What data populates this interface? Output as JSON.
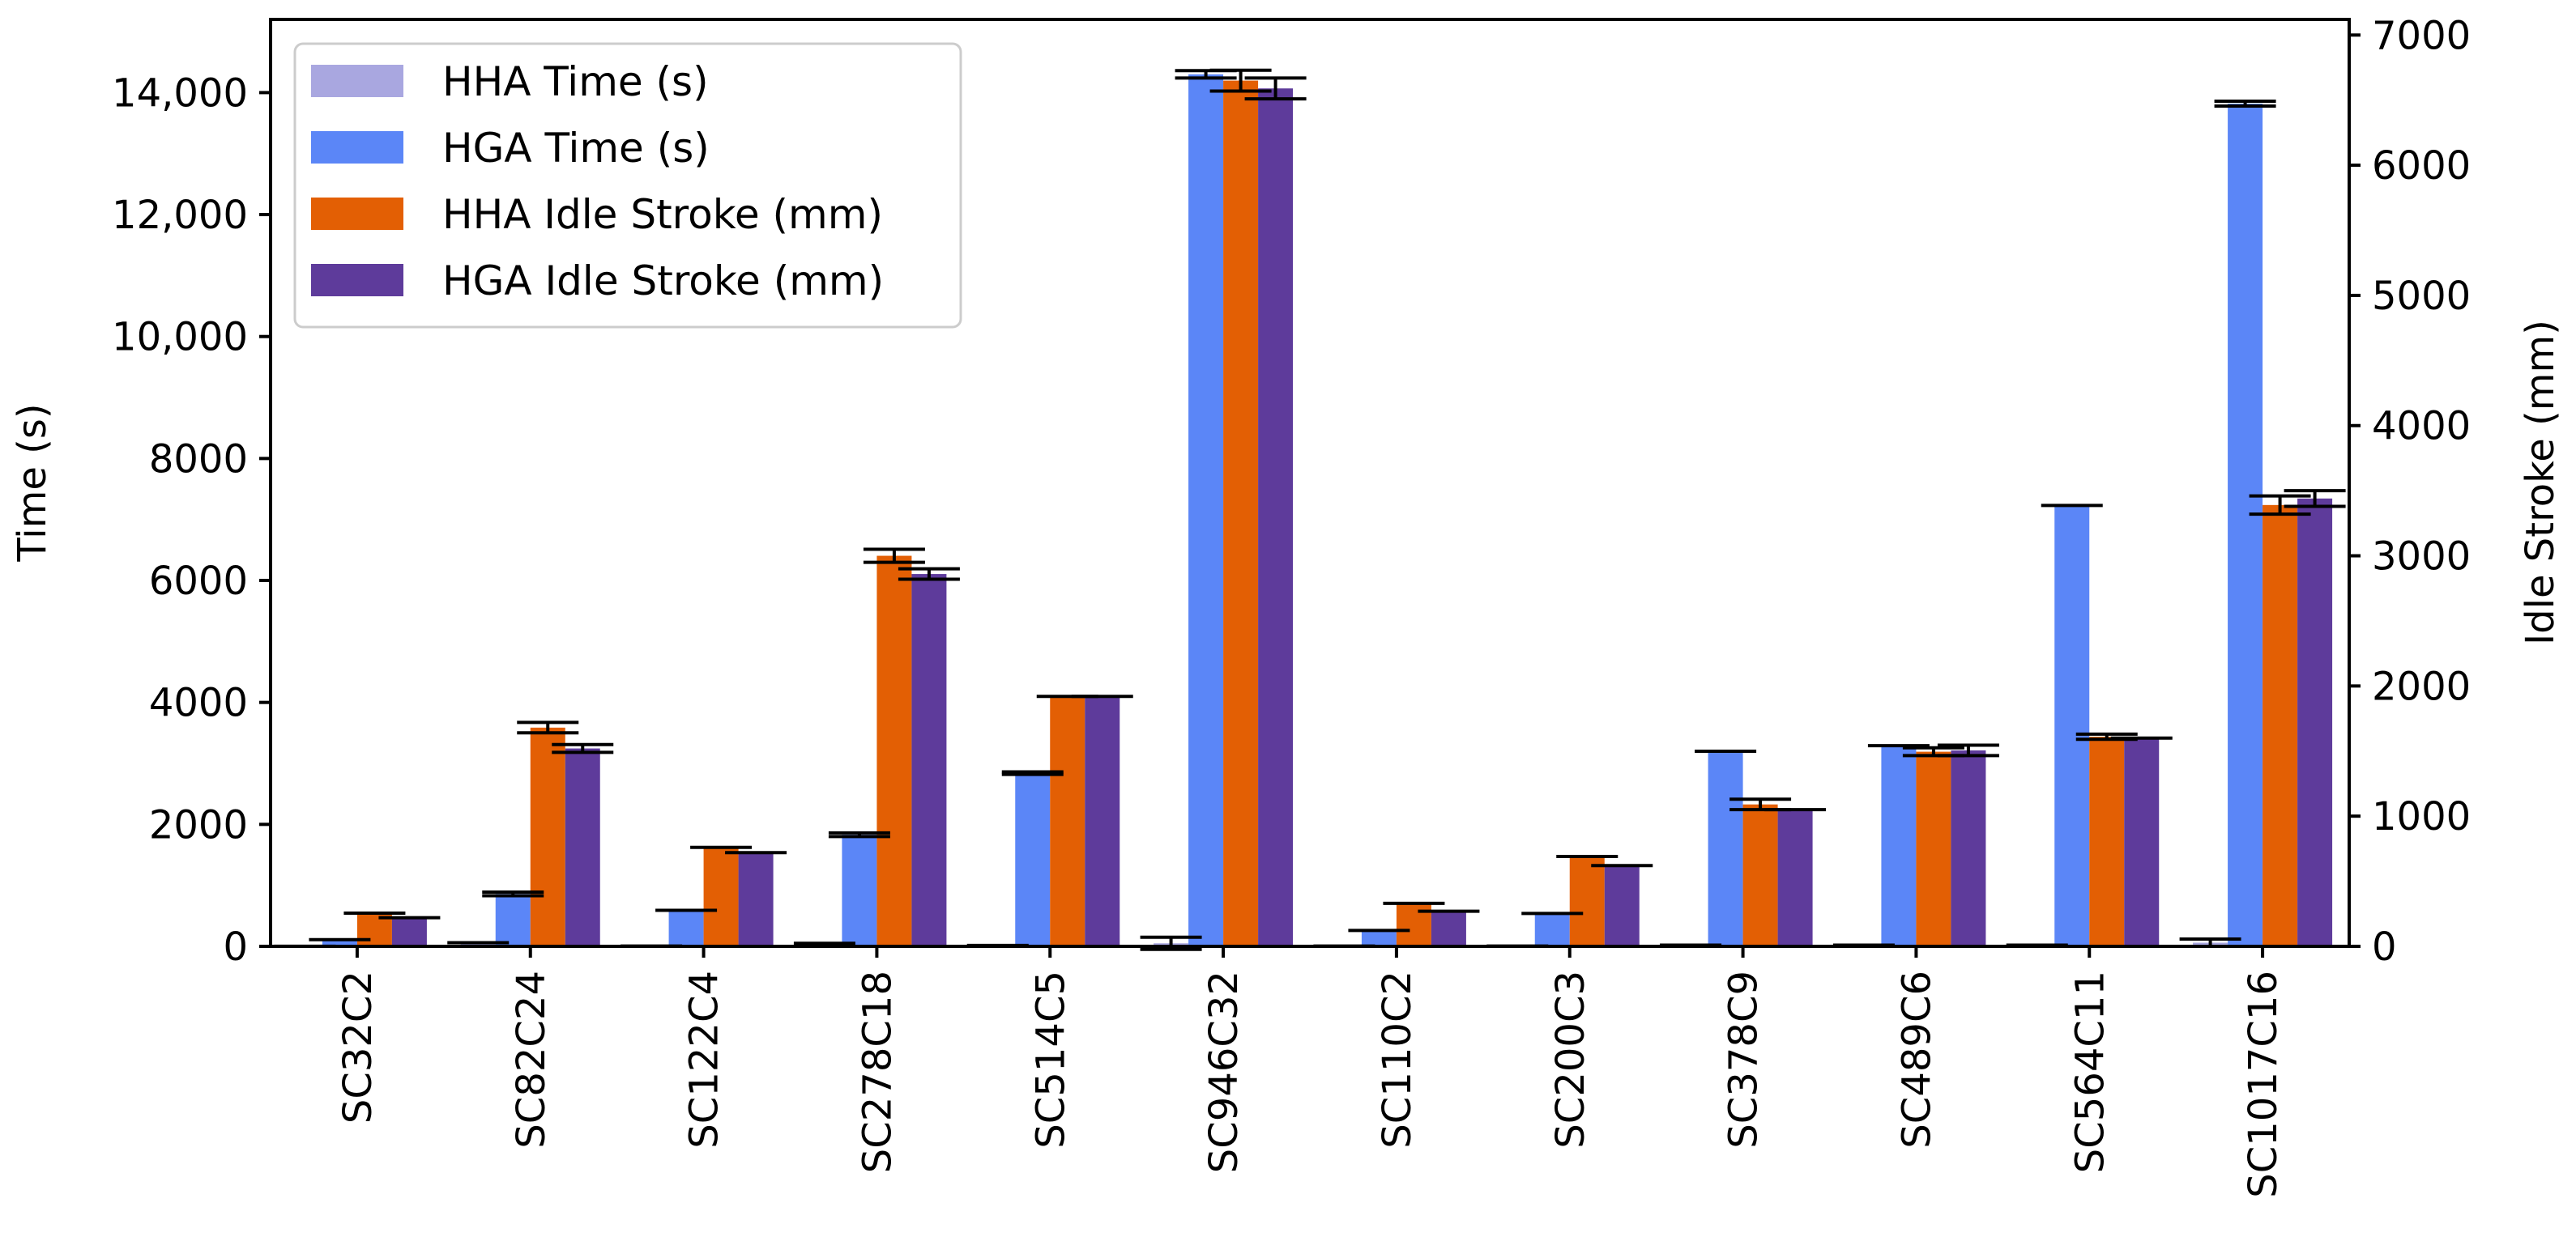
{
  "chart_data": {
    "type": "bar",
    "categories": [
      "SC32C2",
      "SC82C24",
      "SC122C4",
      "SC278C18",
      "SC514C5",
      "SC946C32",
      "SC110C2",
      "SC200C3",
      "SC378C9",
      "SC489C6",
      "SC564C11",
      "SC1017C16"
    ],
    "ylabel": "Time (s)",
    "y2label": "Idle Stroke (mm)",
    "ylim": [
      0,
      15200
    ],
    "y2lim": [
      0,
      7120
    ],
    "yticks": [
      0,
      2000,
      4000,
      6000,
      8000,
      10000,
      12000,
      14000
    ],
    "ytick_labels": [
      "0",
      "2000",
      "4000",
      "6000",
      "8000",
      "10,000",
      "12,000",
      "14,000"
    ],
    "y2ticks": [
      0,
      1000,
      2000,
      3000,
      4000,
      5000,
      6000,
      7000
    ],
    "y2tick_labels": [
      "0",
      "1000",
      "2000",
      "3000",
      "4000",
      "5000",
      "6000",
      "7000"
    ],
    "legend_placement": "top-left",
    "grid": false,
    "series": [
      {
        "name": "HHA Time (s)",
        "axis": "left",
        "color": "#a9a7e0",
        "values": [
          2,
          60,
          5,
          50,
          15,
          50,
          5,
          5,
          20,
          20,
          20,
          60
        ],
        "errors": [
          0,
          0,
          0,
          0,
          0,
          100,
          0,
          0,
          0,
          0,
          0,
          60
        ]
      },
      {
        "name": "HGA Time (s)",
        "axis": "left",
        "color": "#5b86f7",
        "values": [
          110,
          860,
          590,
          1830,
          2840,
          14300,
          260,
          540,
          3200,
          3290,
          7230,
          13820
        ],
        "errors": [
          0,
          30,
          0,
          30,
          20,
          60,
          0,
          0,
          0,
          0,
          0,
          40
        ]
      },
      {
        "name": "HHA Idle Stroke (mm)",
        "axis": "right",
        "color": "#e35f04",
        "values": [
          255,
          1680,
          760,
          3000,
          1920,
          6650,
          330,
          690,
          1090,
          1495,
          1610,
          3390
        ],
        "errors": [
          0,
          40,
          0,
          50,
          0,
          80,
          0,
          0,
          40,
          30,
          20,
          70
        ]
      },
      {
        "name": "HGA Idle Stroke (mm)",
        "axis": "right",
        "color": "#5e3b9b",
        "values": [
          220,
          1520,
          720,
          2860,
          1920,
          6590,
          270,
          620,
          1050,
          1505,
          1600,
          3440
        ],
        "errors": [
          0,
          30,
          0,
          40,
          0,
          80,
          0,
          0,
          0,
          40,
          0,
          60
        ]
      }
    ]
  }
}
